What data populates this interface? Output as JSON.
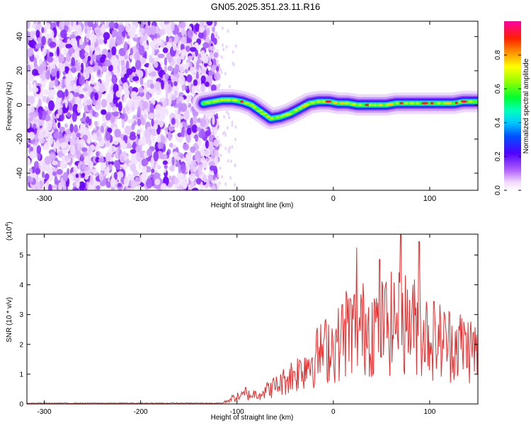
{
  "title": "GN05.2025.351.23.11.R16",
  "chart_data": [
    {
      "type": "heatmap",
      "xlabel": "Height of straight line (km)",
      "ylabel": "Frequency (Hz)",
      "xlim": [
        -318,
        150
      ],
      "ylim": [
        -50,
        49
      ],
      "xticks": [
        -300,
        -200,
        -100,
        0,
        100
      ],
      "yticks": [
        -40,
        -20,
        0,
        20,
        40
      ],
      "noise_region_x": [
        -318,
        -120
      ],
      "signal_track": {
        "x": [
          -135,
          -125,
          -115,
          -105,
          -95,
          -85,
          -75,
          -65,
          -55,
          -45,
          -35,
          -25,
          -15,
          -5,
          5,
          15,
          25,
          35,
          45,
          55,
          65,
          75,
          85,
          95,
          105,
          115,
          125,
          135,
          150
        ],
        "y": [
          1,
          2,
          3,
          3,
          2,
          0,
          -4,
          -8,
          -7,
          -5,
          -2,
          1,
          2,
          2,
          1,
          1,
          0,
          0,
          0,
          0,
          1,
          1,
          1,
          1,
          1,
          1,
          1,
          2,
          2
        ]
      },
      "colorbar": {
        "label": "Normalized spectral amplitude",
        "range": [
          0,
          1
        ],
        "ticks": [
          0.0,
          0.2,
          0.4,
          0.6,
          0.8
        ],
        "tick_labels": [
          "0.0",
          "0.2",
          "0.4",
          "0.6",
          "0.8"
        ]
      }
    },
    {
      "type": "line",
      "xlabel": "Height of straight line (km)",
      "ylabel": "SNR (10 * v/v)",
      "multiplier_label": "(x10",
      "multiplier_exp": "4",
      "multiplier_close": ")",
      "xlim": [
        -318,
        150
      ],
      "ylim": [
        0,
        5.7
      ],
      "xticks": [
        -300,
        -200,
        -100,
        0,
        100
      ],
      "yticks": [
        0,
        1,
        2,
        3,
        4,
        5
      ],
      "color": "#e03030",
      "envelope": {
        "x": [
          -318,
          -130,
          -115,
          -105,
          -95,
          -85,
          -75,
          -65,
          -55,
          -45,
          -35,
          -25,
          -15,
          -5,
          5,
          15,
          25,
          35,
          45,
          55,
          65,
          75,
          85,
          95,
          105,
          115,
          125,
          135,
          145,
          150
        ],
        "y": [
          0.02,
          0.03,
          0.05,
          0.3,
          0.45,
          0.5,
          0.6,
          0.85,
          1.1,
          1.5,
          1.8,
          2.3,
          2.7,
          3.1,
          3.3,
          4.2,
          4.0,
          4.3,
          4.2,
          4.4,
          4.5,
          4.5,
          4.3,
          3.9,
          3.6,
          3.4,
          3.3,
          3.2,
          3.0,
          2.8
        ]
      },
      "peaks": [
        {
          "x": 24,
          "y": 5.25
        },
        {
          "x": 48,
          "y": 4.85
        },
        {
          "x": 70,
          "y": 5.7
        },
        {
          "x": 89,
          "y": 5.45
        },
        {
          "x": -91,
          "y": 0.55
        }
      ]
    }
  ]
}
